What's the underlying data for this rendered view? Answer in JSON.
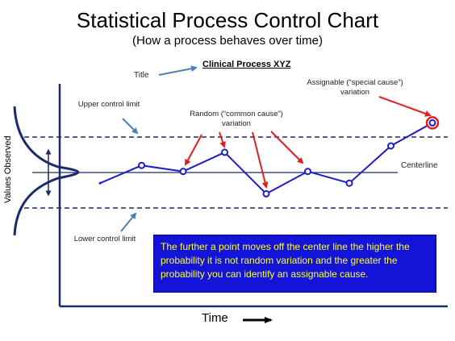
{
  "title": "Statistical Process Control Chart",
  "subtitle": "(How a process behaves over time)",
  "chart_title_label": "Title",
  "process_name": "Clinical Process XYZ",
  "labels": {
    "assignable": "Assignable (“special cause”) variation",
    "upper_control_limit": "Upper control limit",
    "random": "Random (“common cause”) variation",
    "centerline": "Centerline",
    "lower_control_limit": "Lower control limit"
  },
  "y_axis_label": "Values Observed",
  "x_axis_label": "Time",
  "info_box": "The further a point moves off the center line the higher the probability it is not random variation and the greater the probability you can identify an assignable cause.",
  "colors": {
    "line": "#1c1cc8",
    "axes": "#1b2a6b",
    "arrows": "#e02020",
    "pointer_arrows": "#4f7fb5",
    "special_point": "#e02020",
    "info_box_bg": "#1414d8",
    "info_box_text": "#ffff33"
  },
  "chart_data": {
    "type": "line",
    "centerline": 0,
    "upper_control_limit": 1,
    "lower_control_limit": -1,
    "series": [
      {
        "values": [
          -0.3,
          0.2,
          0.03,
          0.57,
          -0.6,
          0.03,
          -0.3,
          0.75,
          1.4
        ]
      }
    ],
    "special_cause_index": 8
  }
}
